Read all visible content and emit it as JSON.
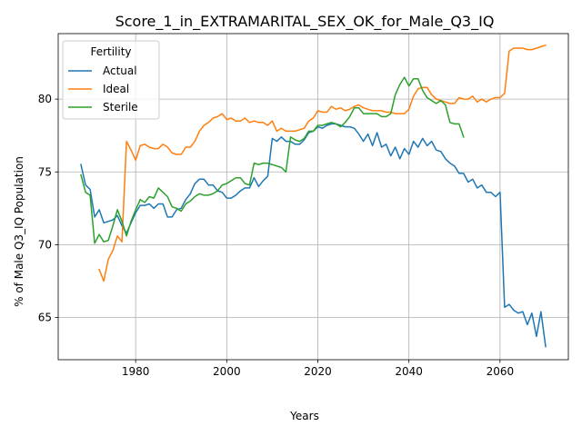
{
  "chart_data": {
    "type": "line",
    "title": "Score_1_in_EXTRAMARITAL_SEX_OK_for_Male_Q3_IQ",
    "xlabel": "Years",
    "ylabel": "% of Male Q3_IQ Population",
    "xlim": [
      1963,
      2075
    ],
    "ylim": [
      62.1,
      84.5
    ],
    "xticks": [
      1980,
      2000,
      2020,
      2040,
      2060
    ],
    "yticks": [
      65,
      70,
      75,
      80
    ],
    "grid": true,
    "legend": {
      "title": "Fertility",
      "placement": "top-left"
    },
    "series": [
      {
        "name": "Actual",
        "color": "#1f77b4",
        "points": [
          [
            1968,
            75.5
          ],
          [
            1969,
            74.1
          ],
          [
            1970,
            73.8
          ],
          [
            1971,
            71.9
          ],
          [
            1972,
            72.4
          ],
          [
            1973,
            71.5
          ],
          [
            1974,
            71.6
          ],
          [
            1975,
            71.7
          ],
          [
            1976,
            72.0
          ],
          [
            1977,
            71.3
          ],
          [
            1978,
            70.8
          ],
          [
            1979,
            71.5
          ],
          [
            1980,
            72.2
          ],
          [
            1981,
            72.7
          ],
          [
            1982,
            72.7
          ],
          [
            1983,
            72.8
          ],
          [
            1984,
            72.5
          ],
          [
            1985,
            72.8
          ],
          [
            1986,
            72.8
          ],
          [
            1987,
            71.9
          ],
          [
            1988,
            71.9
          ],
          [
            1989,
            72.4
          ],
          [
            1990,
            72.5
          ],
          [
            1991,
            73.1
          ],
          [
            1992,
            73.5
          ],
          [
            1993,
            74.2
          ],
          [
            1994,
            74.5
          ],
          [
            1995,
            74.5
          ],
          [
            1996,
            74.1
          ],
          [
            1997,
            74.1
          ],
          [
            1998,
            73.7
          ],
          [
            1999,
            73.6
          ],
          [
            2000,
            73.2
          ],
          [
            2001,
            73.2
          ],
          [
            2002,
            73.4
          ],
          [
            2003,
            73.7
          ],
          [
            2004,
            73.9
          ],
          [
            2005,
            73.9
          ],
          [
            2006,
            74.6
          ],
          [
            2007,
            74.0
          ],
          [
            2008,
            74.4
          ],
          [
            2009,
            74.7
          ],
          [
            2010,
            77.3
          ],
          [
            2011,
            77.1
          ],
          [
            2012,
            77.4
          ],
          [
            2013,
            77.1
          ],
          [
            2014,
            77.1
          ],
          [
            2015,
            76.9
          ],
          [
            2016,
            76.9
          ],
          [
            2017,
            77.2
          ],
          [
            2018,
            77.7
          ],
          [
            2019,
            77.8
          ],
          [
            2020,
            78.1
          ],
          [
            2021,
            78.0
          ],
          [
            2022,
            78.2
          ],
          [
            2023,
            78.3
          ],
          [
            2024,
            78.3
          ],
          [
            2025,
            78.2
          ],
          [
            2026,
            78.1
          ],
          [
            2027,
            78.1
          ],
          [
            2028,
            78.0
          ],
          [
            2029,
            77.6
          ],
          [
            2030,
            77.1
          ],
          [
            2031,
            77.6
          ],
          [
            2032,
            76.8
          ],
          [
            2033,
            77.7
          ],
          [
            2034,
            76.7
          ],
          [
            2035,
            76.9
          ],
          [
            2036,
            76.1
          ],
          [
            2037,
            76.7
          ],
          [
            2038,
            75.9
          ],
          [
            2039,
            76.6
          ],
          [
            2040,
            76.2
          ],
          [
            2041,
            77.1
          ],
          [
            2042,
            76.7
          ],
          [
            2043,
            77.3
          ],
          [
            2044,
            76.8
          ],
          [
            2045,
            77.1
          ],
          [
            2046,
            76.5
          ],
          [
            2047,
            76.4
          ],
          [
            2048,
            75.9
          ],
          [
            2049,
            75.6
          ],
          [
            2050,
            75.4
          ],
          [
            2051,
            74.9
          ],
          [
            2052,
            74.9
          ],
          [
            2053,
            74.3
          ],
          [
            2054,
            74.5
          ],
          [
            2055,
            73.9
          ],
          [
            2056,
            74.1
          ],
          [
            2057,
            73.6
          ],
          [
            2058,
            73.6
          ],
          [
            2059,
            73.3
          ],
          [
            2060,
            73.6
          ],
          [
            2061,
            65.7
          ],
          [
            2062,
            65.9
          ],
          [
            2063,
            65.5
          ],
          [
            2064,
            65.3
          ],
          [
            2065,
            65.4
          ],
          [
            2066,
            64.5
          ],
          [
            2067,
            65.3
          ],
          [
            2068,
            63.7
          ],
          [
            2069,
            65.4
          ],
          [
            2070,
            63.0
          ]
        ]
      },
      {
        "name": "Ideal",
        "color": "#ff7f0e",
        "points": [
          [
            1972,
            68.3
          ],
          [
            1973,
            67.5
          ],
          [
            1974,
            69.0
          ],
          [
            1975,
            69.6
          ],
          [
            1976,
            70.6
          ],
          [
            1977,
            70.2
          ],
          [
            1978,
            77.1
          ],
          [
            1979,
            76.5
          ],
          [
            1980,
            75.8
          ],
          [
            1981,
            76.8
          ],
          [
            1982,
            76.9
          ],
          [
            1983,
            76.7
          ],
          [
            1984,
            76.6
          ],
          [
            1985,
            76.6
          ],
          [
            1986,
            76.9
          ],
          [
            1987,
            76.7
          ],
          [
            1988,
            76.3
          ],
          [
            1989,
            76.2
          ],
          [
            1990,
            76.2
          ],
          [
            1991,
            76.7
          ],
          [
            1992,
            76.7
          ],
          [
            1993,
            77.1
          ],
          [
            1994,
            77.8
          ],
          [
            1995,
            78.2
          ],
          [
            1996,
            78.4
          ],
          [
            1997,
            78.7
          ],
          [
            1998,
            78.8
          ],
          [
            1999,
            79.0
          ],
          [
            2000,
            78.6
          ],
          [
            2001,
            78.7
          ],
          [
            2002,
            78.5
          ],
          [
            2003,
            78.5
          ],
          [
            2004,
            78.7
          ],
          [
            2005,
            78.4
          ],
          [
            2006,
            78.5
          ],
          [
            2007,
            78.4
          ],
          [
            2008,
            78.4
          ],
          [
            2009,
            78.2
          ],
          [
            2010,
            78.5
          ],
          [
            2011,
            77.8
          ],
          [
            2012,
            78.0
          ],
          [
            2013,
            77.8
          ],
          [
            2014,
            77.8
          ],
          [
            2015,
            77.8
          ],
          [
            2016,
            77.9
          ],
          [
            2017,
            78.0
          ],
          [
            2018,
            78.5
          ],
          [
            2019,
            78.7
          ],
          [
            2020,
            79.2
          ],
          [
            2021,
            79.1
          ],
          [
            2022,
            79.1
          ],
          [
            2023,
            79.5
          ],
          [
            2024,
            79.3
          ],
          [
            2025,
            79.4
          ],
          [
            2026,
            79.2
          ],
          [
            2027,
            79.3
          ],
          [
            2028,
            79.5
          ],
          [
            2029,
            79.6
          ],
          [
            2030,
            79.4
          ],
          [
            2031,
            79.3
          ],
          [
            2032,
            79.2
          ],
          [
            2033,
            79.2
          ],
          [
            2034,
            79.2
          ],
          [
            2035,
            79.1
          ],
          [
            2036,
            79.1
          ],
          [
            2037,
            79.0
          ],
          [
            2038,
            79.0
          ],
          [
            2039,
            79.0
          ],
          [
            2040,
            79.3
          ],
          [
            2041,
            80.2
          ],
          [
            2042,
            80.7
          ],
          [
            2043,
            80.8
          ],
          [
            2044,
            80.8
          ],
          [
            2045,
            80.3
          ],
          [
            2046,
            80.0
          ],
          [
            2047,
            79.9
          ],
          [
            2048,
            79.8
          ],
          [
            2049,
            79.7
          ],
          [
            2050,
            79.7
          ],
          [
            2051,
            80.1
          ],
          [
            2052,
            80.0
          ],
          [
            2053,
            80.0
          ],
          [
            2054,
            80.2
          ],
          [
            2055,
            79.8
          ],
          [
            2056,
            80.0
          ],
          [
            2057,
            79.8
          ],
          [
            2058,
            80.0
          ],
          [
            2059,
            80.1
          ],
          [
            2060,
            80.1
          ],
          [
            2061,
            80.4
          ],
          [
            2062,
            83.3
          ],
          [
            2063,
            83.5
          ],
          [
            2064,
            83.5
          ],
          [
            2065,
            83.5
          ],
          [
            2066,
            83.4
          ],
          [
            2067,
            83.4
          ],
          [
            2068,
            83.5
          ],
          [
            2069,
            83.6
          ],
          [
            2070,
            83.7
          ]
        ]
      },
      {
        "name": "Sterile",
        "color": "#2ca02c",
        "points": [
          [
            1968,
            74.8
          ],
          [
            1969,
            73.6
          ],
          [
            1970,
            73.4
          ],
          [
            1971,
            70.1
          ],
          [
            1972,
            70.7
          ],
          [
            1973,
            70.2
          ],
          [
            1974,
            70.3
          ],
          [
            1975,
            71.3
          ],
          [
            1976,
            72.4
          ],
          [
            1977,
            71.6
          ],
          [
            1978,
            70.6
          ],
          [
            1979,
            71.6
          ],
          [
            1980,
            72.4
          ],
          [
            1981,
            73.1
          ],
          [
            1982,
            72.9
          ],
          [
            1983,
            73.3
          ],
          [
            1984,
            73.2
          ],
          [
            1985,
            73.9
          ],
          [
            1986,
            73.6
          ],
          [
            1987,
            73.3
          ],
          [
            1988,
            72.6
          ],
          [
            1989,
            72.5
          ],
          [
            1990,
            72.3
          ],
          [
            1991,
            72.8
          ],
          [
            1992,
            73.0
          ],
          [
            1993,
            73.3
          ],
          [
            1994,
            73.5
          ],
          [
            1995,
            73.4
          ],
          [
            1996,
            73.4
          ],
          [
            1997,
            73.5
          ],
          [
            1998,
            73.7
          ],
          [
            1999,
            74.1
          ],
          [
            2000,
            74.2
          ],
          [
            2001,
            74.4
          ],
          [
            2002,
            74.6
          ],
          [
            2003,
            74.6
          ],
          [
            2004,
            74.2
          ],
          [
            2005,
            74.1
          ],
          [
            2006,
            75.6
          ],
          [
            2007,
            75.5
          ],
          [
            2008,
            75.6
          ],
          [
            2009,
            75.6
          ],
          [
            2010,
            75.5
          ],
          [
            2011,
            75.4
          ],
          [
            2012,
            75.3
          ],
          [
            2013,
            75.0
          ],
          [
            2014,
            77.4
          ],
          [
            2015,
            77.2
          ],
          [
            2016,
            77.1
          ],
          [
            2017,
            77.3
          ],
          [
            2018,
            77.8
          ],
          [
            2019,
            77.8
          ],
          [
            2020,
            78.2
          ],
          [
            2021,
            78.2
          ],
          [
            2022,
            78.3
          ],
          [
            2023,
            78.4
          ],
          [
            2024,
            78.3
          ],
          [
            2025,
            78.1
          ],
          [
            2026,
            78.4
          ],
          [
            2027,
            78.8
          ],
          [
            2028,
            79.4
          ],
          [
            2029,
            79.4
          ],
          [
            2030,
            79.0
          ],
          [
            2031,
            79.0
          ],
          [
            2032,
            79.0
          ],
          [
            2033,
            79.0
          ],
          [
            2034,
            78.8
          ],
          [
            2035,
            78.8
          ],
          [
            2036,
            79.0
          ],
          [
            2037,
            80.3
          ],
          [
            2038,
            81.0
          ],
          [
            2039,
            81.5
          ],
          [
            2040,
            80.9
          ],
          [
            2041,
            81.4
          ],
          [
            2042,
            81.4
          ],
          [
            2043,
            80.6
          ],
          [
            2044,
            80.1
          ],
          [
            2045,
            79.9
          ],
          [
            2046,
            79.7
          ],
          [
            2047,
            79.9
          ],
          [
            2048,
            79.6
          ],
          [
            2049,
            78.4
          ],
          [
            2050,
            78.3
          ],
          [
            2051,
            78.3
          ],
          [
            2052,
            77.4
          ]
        ]
      }
    ]
  }
}
